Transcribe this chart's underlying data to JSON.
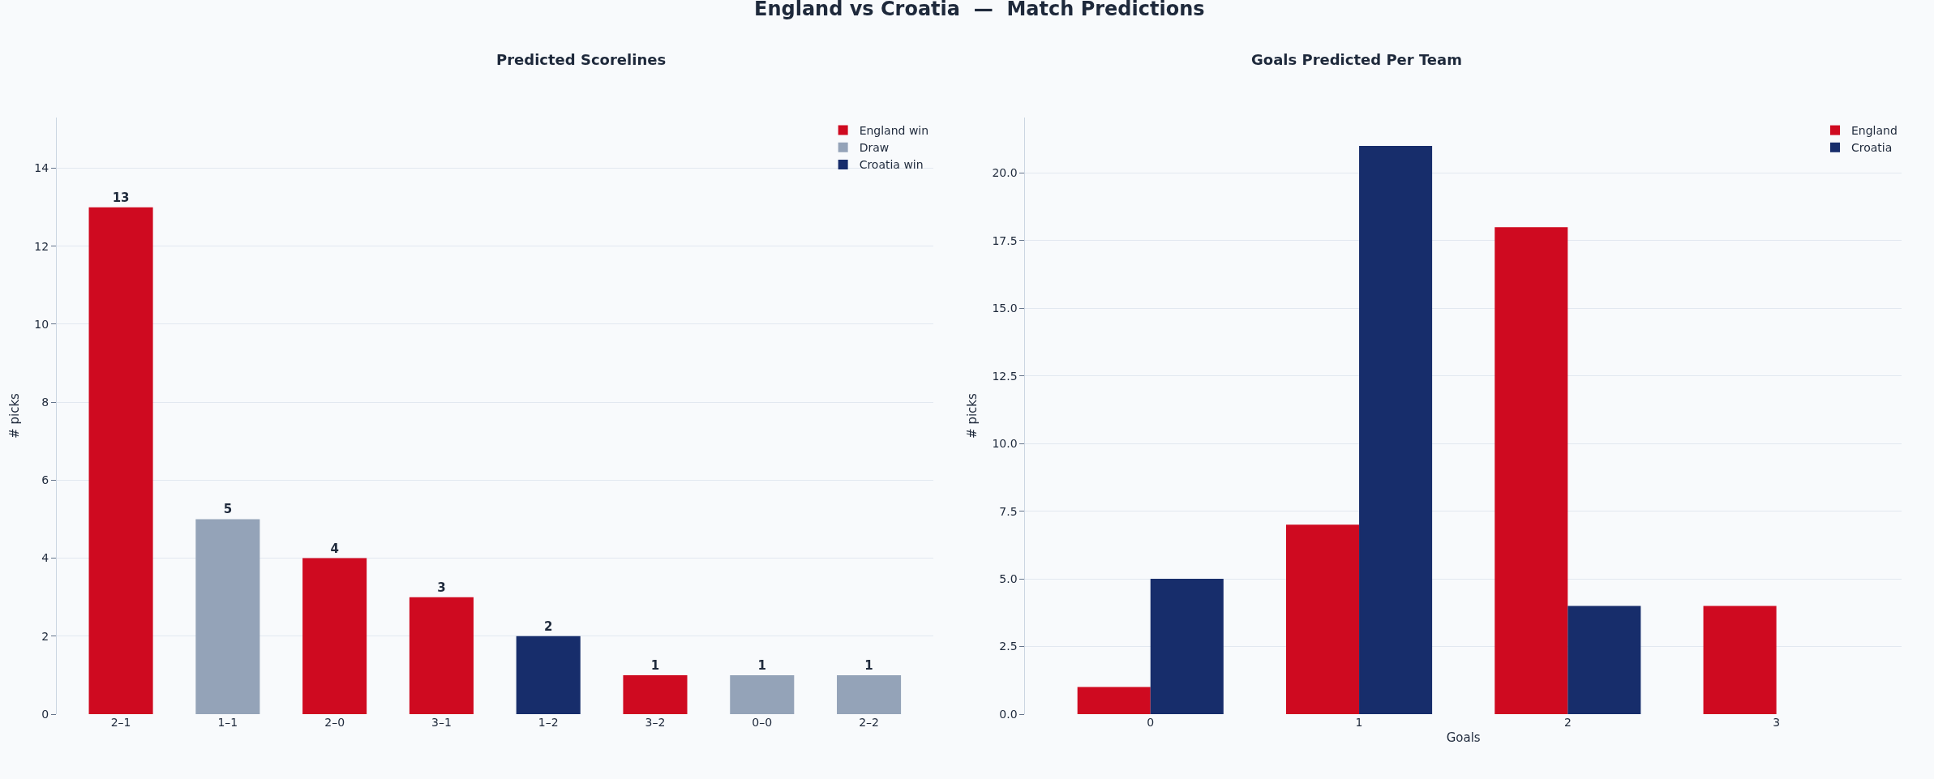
{
  "chart_data": [
    {
      "type": "bar",
      "annotations": [
        "England vs Croatia  —  Match Predictions"
      ],
      "title": "Predicted Scorelines",
      "ylabel": "# picks",
      "categories": [
        "2–1",
        "1–1",
        "2–0",
        "3–1",
        "1–2",
        "3–2",
        "0–0",
        "2–2"
      ],
      "series": [
        {
          "name": "England win",
          "color": "#cf0a20",
          "values": [
            13,
            null,
            4,
            3,
            null,
            1,
            null,
            null
          ]
        },
        {
          "name": "Draw",
          "color": "#94a3b8",
          "values": [
            null,
            5,
            null,
            null,
            null,
            null,
            1,
            1
          ]
        },
        {
          "name": "Croatia win",
          "color": "#172d6b",
          "values": [
            null,
            null,
            null,
            null,
            2,
            null,
            null,
            null
          ]
        }
      ],
      "ylim": [
        0,
        15.3
      ],
      "yticks": [
        0,
        2,
        4,
        6,
        8,
        10,
        12,
        14
      ],
      "grid": "y",
      "legend": "top right",
      "data_labels": true
    },
    {
      "type": "bar",
      "title": "Goals Predicted Per Team",
      "xlabel": "Goals",
      "ylabel": "# picks",
      "x": [
        0,
        1,
        2,
        3
      ],
      "series": [
        {
          "name": "England",
          "color": "#cf0a20",
          "values": [
            1,
            7,
            18,
            4
          ]
        },
        {
          "name": "Croatia",
          "color": "#172d6b",
          "values": [
            5,
            21,
            4,
            0
          ]
        }
      ],
      "xlim": [
        -0.6,
        3.6
      ],
      "xticks": [
        0,
        1,
        2,
        3
      ],
      "ylim": [
        0,
        22.05
      ],
      "yticks": [
        {
          "value": 0,
          "label": "0.0"
        },
        {
          "value": 2.5,
          "label": "2.5"
        },
        {
          "value": 5,
          "label": "5.0"
        },
        {
          "value": 7.5,
          "label": "7.5"
        },
        {
          "value": 10,
          "label": "10.0"
        },
        {
          "value": 12.5,
          "label": "12.5"
        },
        {
          "value": 15,
          "label": "15.0"
        },
        {
          "value": 17.5,
          "label": "17.5"
        },
        {
          "value": 20,
          "label": "20.0"
        }
      ],
      "grid": "y",
      "legend": "top right"
    }
  ]
}
